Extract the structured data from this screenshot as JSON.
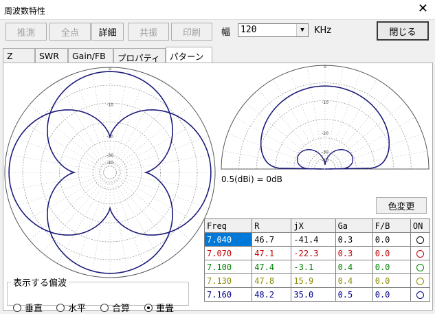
{
  "window": {
    "title": "周波数特性",
    "close_glyph": "✕"
  },
  "toolbar": {
    "buttons": [
      {
        "label": "推測",
        "enabled": false
      },
      {
        "label": "全点",
        "enabled": false
      },
      {
        "label": "詳細",
        "enabled": true
      },
      {
        "label": "共振",
        "enabled": false
      },
      {
        "label": "印刷",
        "enabled": false
      }
    ],
    "width_label": "幅",
    "width_value": "120",
    "width_unit": "KHz",
    "close_label": "閉じる"
  },
  "tabs": [
    {
      "label": "Z",
      "active": false
    },
    {
      "label": "SWR",
      "active": false
    },
    {
      "label": "Gain/FB",
      "active": false
    },
    {
      "label": "プロパティ",
      "active": false
    },
    {
      "label": "パターン",
      "active": true
    }
  ],
  "plots": {
    "left_ring_labels": [
      "0",
      "-10",
      "-20",
      "-30",
      "-40"
    ],
    "right_ring_labels": [
      "0",
      "-10",
      "-20",
      "-30",
      "-40"
    ],
    "note": "0.5(dBi) = 0dB",
    "pattern_color": "#1a1a7a",
    "grid_color": "#9a9a9a"
  },
  "color_button_label": "色変更",
  "table": {
    "headers": [
      "Freq",
      "R",
      "jX",
      "Ga",
      "F/B",
      "ON"
    ],
    "rows": [
      {
        "freq": "7.040",
        "r": "46.7",
        "jx": "-41.4",
        "ga": "0.3",
        "fb": "0.0",
        "color": "#000000",
        "selected": true
      },
      {
        "freq": "7.070",
        "r": "47.1",
        "jx": "-22.3",
        "ga": "0.3",
        "fb": "0.0",
        "color": "#c00000",
        "selected": false
      },
      {
        "freq": "7.100",
        "r": "47.4",
        "jx": "-3.1",
        "ga": "0.4",
        "fb": "0.0",
        "color": "#008000",
        "selected": false
      },
      {
        "freq": "7.130",
        "r": "47.8",
        "jx": "15.9",
        "ga": "0.4",
        "fb": "0.0",
        "color": "#8a8a00",
        "selected": false
      },
      {
        "freq": "7.160",
        "r": "48.2",
        "jx": "35.0",
        "ga": "0.5",
        "fb": "0.0",
        "color": "#00008b",
        "selected": false
      }
    ]
  },
  "polarization": {
    "legend": "表示する偏波",
    "options": [
      {
        "label": "垂直",
        "checked": false
      },
      {
        "label": "水平",
        "checked": false
      },
      {
        "label": "合算",
        "checked": false
      },
      {
        "label": "重畳",
        "checked": true
      }
    ]
  }
}
